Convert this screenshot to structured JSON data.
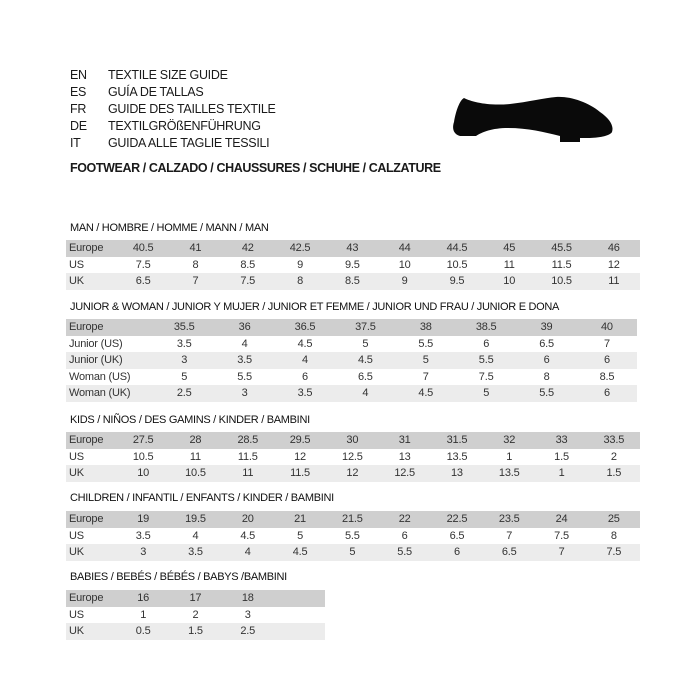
{
  "languages": [
    {
      "code": "EN",
      "title": "TEXTILE SIZE GUIDE"
    },
    {
      "code": "ES",
      "title": "GUÍA DE TALLAS"
    },
    {
      "code": "FR",
      "title": "GUIDE DES TAILLES TEXTILE"
    },
    {
      "code": "DE",
      "title": "TEXTILGRÖßENFÜHRUNG"
    },
    {
      "code": "IT",
      "title": "GUIDA ALLE TAGLIE TESSILI"
    }
  ],
  "footwear_heading": "FOOTWEAR / CALZADO / CHAUSSURES / SCHUHE / CALZATURE",
  "shoe_icon": "dress-shoe-icon",
  "sections": [
    {
      "title": "MAN / HOMBRE / HOMME / MANN / MAN",
      "rows": [
        {
          "label": "Europe",
          "values": [
            "40.5",
            "41",
            "42",
            "42.5",
            "43",
            "44",
            "44.5",
            "45",
            "45.5",
            "46"
          ]
        },
        {
          "label": "US",
          "values": [
            "7.5",
            "8",
            "8.5",
            "9",
            "9.5",
            "10",
            "10.5",
            "11",
            "11.5",
            "12"
          ]
        },
        {
          "label": "UK",
          "values": [
            "6.5",
            "7",
            "7.5",
            "8",
            "8.5",
            "9",
            "9.5",
            "10",
            "10.5",
            "11"
          ]
        }
      ]
    },
    {
      "title": "JUNIOR & WOMAN / JUNIOR Y MUJER / JUNIOR ET FEMME / JUNIOR UND FRAU / JUNIOR E DONA",
      "rows": [
        {
          "label": "Europe",
          "values": [
            "35.5",
            "36",
            "36.5",
            "37.5",
            "38",
            "38.5",
            "39",
            "40"
          ]
        },
        {
          "label": "Junior (US)",
          "values": [
            "3.5",
            "4",
            "4.5",
            "5",
            "5.5",
            "6",
            "6.5",
            "7"
          ]
        },
        {
          "label": "Junior (UK)",
          "values": [
            "3",
            "3.5",
            "4",
            "4.5",
            "5",
            "5.5",
            "6",
            "6"
          ]
        },
        {
          "label": "Woman (US)",
          "values": [
            "5",
            "5.5",
            "6",
            "6.5",
            "7",
            "7.5",
            "8",
            "8.5"
          ]
        },
        {
          "label": "Woman (UK)",
          "values": [
            "2.5",
            "3",
            "3.5",
            "4",
            "4.5",
            "5",
            "5.5",
            "6"
          ]
        }
      ]
    },
    {
      "title": "KIDS / NIÑOS / DES GAMINS / KINDER / BAMBINI",
      "rows": [
        {
          "label": "Europe",
          "values": [
            "27.5",
            "28",
            "28.5",
            "29.5",
            "30",
            "31",
            "31.5",
            "32",
            "33",
            "33.5"
          ]
        },
        {
          "label": "US",
          "values": [
            "10.5",
            "11",
            "11.5",
            "12",
            "12.5",
            "13",
            "13.5",
            "1",
            "1.5",
            "2"
          ]
        },
        {
          "label": "UK",
          "values": [
            "10",
            "10.5",
            "11",
            "11.5",
            "12",
            "12.5",
            "13",
            "13.5",
            "1",
            "1.5"
          ]
        }
      ]
    },
    {
      "title": "CHILDREN / INFANTIL / ENFANTS / KINDER / BAMBINI",
      "rows": [
        {
          "label": "Europe",
          "values": [
            "19",
            "19.5",
            "20",
            "21",
            "21.5",
            "22",
            "22.5",
            "23.5",
            "24",
            "25"
          ]
        },
        {
          "label": "US",
          "values": [
            "3.5",
            "4",
            "4.5",
            "5",
            "5.5",
            "6",
            "6.5",
            "7",
            "7.5",
            "8"
          ]
        },
        {
          "label": "UK",
          "values": [
            "3",
            "3.5",
            "4",
            "4.5",
            "5",
            "5.5",
            "6",
            "6.5",
            "7",
            "7.5"
          ]
        }
      ]
    },
    {
      "title": "BABIES  / BEBÉS / BÉBÉS / BABYS /BAMBINI",
      "rows": [
        {
          "label": "Europe",
          "values": [
            "16",
            "17",
            "18"
          ]
        },
        {
          "label": "US",
          "values": [
            "1",
            "2",
            "3"
          ]
        },
        {
          "label": "UK",
          "values": [
            "0.5",
            "1.5",
            "2.5"
          ]
        }
      ]
    }
  ]
}
